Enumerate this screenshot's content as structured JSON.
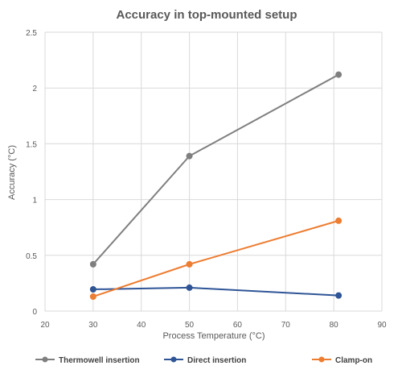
{
  "chart_data": {
    "type": "line",
    "title": "Accuracy in top-mounted setup",
    "xlabel": "Process Temperature (°C)",
    "ylabel": "Accuracy (°C)",
    "xlim": [
      20,
      90
    ],
    "ylim": [
      0,
      2.5
    ],
    "xticks": [
      "20",
      "30",
      "40",
      "50",
      "60",
      "70",
      "80",
      "90"
    ],
    "yticks": [
      "0",
      "0.5",
      "1",
      "1.5",
      "2",
      "2.5"
    ],
    "grid": true,
    "legend_position": "bottom",
    "series": [
      {
        "name": "Thermowell insertion",
        "color": "#7f7f7f",
        "x": [
          30,
          50,
          81
        ],
        "y": [
          0.42,
          1.39,
          2.12
        ]
      },
      {
        "name": "Direct insertion",
        "color": "#2f5597",
        "x": [
          30,
          50,
          81
        ],
        "y": [
          0.195,
          0.21,
          0.14
        ]
      },
      {
        "name": "Clamp-on",
        "color": "#ed7d31",
        "x": [
          30,
          50,
          81
        ],
        "y": [
          0.13,
          0.42,
          0.81
        ]
      }
    ]
  }
}
